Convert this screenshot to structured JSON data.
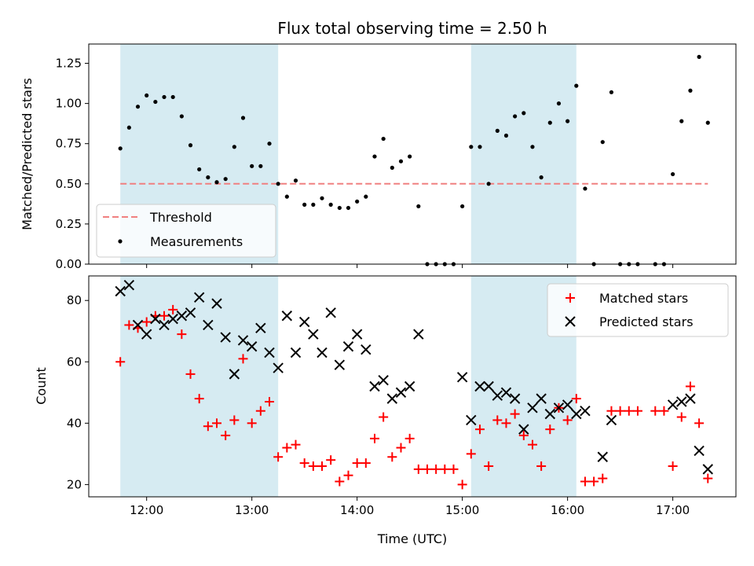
{
  "chart_data": [
    {
      "type": "scatter",
      "title": "Flux total observing time = 2.50 h",
      "ylabel": "Matched/Predicted stars",
      "xlim": [
        "11:27",
        "17:36"
      ],
      "ylim": [
        0,
        1.37
      ],
      "yticks": [
        "0.00",
        "0.25",
        "0.50",
        "0.75",
        "1.00",
        "1.25"
      ],
      "shaded_intervals": [
        [
          "11:45",
          "13:15"
        ],
        [
          "15:05",
          "16:05"
        ]
      ],
      "threshold": {
        "name": "Threshold",
        "value": 0.5,
        "x_range": [
          "11:45",
          "17:20"
        ],
        "color": "#f08080",
        "style": "dashed"
      },
      "series": [
        {
          "name": "Measurements",
          "marker": "dot",
          "color": "#000000",
          "points": [
            [
              "11:45",
              0.72
            ],
            [
              "11:50",
              0.85
            ],
            [
              "11:55",
              0.98
            ],
            [
              "12:00",
              1.05
            ],
            [
              "12:05",
              1.01
            ],
            [
              "12:10",
              1.04
            ],
            [
              "12:15",
              1.04
            ],
            [
              "12:20",
              0.92
            ],
            [
              "12:25",
              0.74
            ],
            [
              "12:30",
              0.59
            ],
            [
              "12:35",
              0.54
            ],
            [
              "12:40",
              0.51
            ],
            [
              "12:45",
              0.53
            ],
            [
              "12:50",
              0.73
            ],
            [
              "12:55",
              0.91
            ],
            [
              "13:00",
              0.61
            ],
            [
              "13:05",
              0.61
            ],
            [
              "13:10",
              0.75
            ],
            [
              "13:15",
              0.5
            ],
            [
              "13:20",
              0.42
            ],
            [
              "13:25",
              0.52
            ],
            [
              "13:30",
              0.37
            ],
            [
              "13:35",
              0.37
            ],
            [
              "13:40",
              0.41
            ],
            [
              "13:45",
              0.37
            ],
            [
              "13:50",
              0.35
            ],
            [
              "13:55",
              0.35
            ],
            [
              "14:00",
              0.39
            ],
            [
              "14:05",
              0.42
            ],
            [
              "14:10",
              0.67
            ],
            [
              "14:15",
              0.78
            ],
            [
              "14:20",
              0.6
            ],
            [
              "14:25",
              0.64
            ],
            [
              "14:30",
              0.67
            ],
            [
              "14:35",
              0.36
            ],
            [
              "14:40",
              0.0
            ],
            [
              "14:45",
              0.0
            ],
            [
              "14:50",
              0.0
            ],
            [
              "14:55",
              0.0
            ],
            [
              "15:00",
              0.36
            ],
            [
              "15:05",
              0.73
            ],
            [
              "15:10",
              0.73
            ],
            [
              "15:15",
              0.5
            ],
            [
              "15:20",
              0.83
            ],
            [
              "15:25",
              0.8
            ],
            [
              "15:30",
              0.92
            ],
            [
              "15:35",
              0.94
            ],
            [
              "15:40",
              0.73
            ],
            [
              "15:45",
              0.54
            ],
            [
              "15:50",
              0.88
            ],
            [
              "15:55",
              1.0
            ],
            [
              "16:00",
              0.89
            ],
            [
              "16:05",
              1.11
            ],
            [
              "16:10",
              0.47
            ],
            [
              "16:15",
              0.0
            ],
            [
              "16:20",
              0.76
            ],
            [
              "16:25",
              1.07
            ],
            [
              "16:30",
              0.0
            ],
            [
              "16:35",
              0.0
            ],
            [
              "16:40",
              0.0
            ],
            [
              "16:50",
              0.0
            ],
            [
              "16:55",
              0.0
            ],
            [
              "17:00",
              0.56
            ],
            [
              "17:05",
              0.89
            ],
            [
              "17:10",
              1.08
            ],
            [
              "17:15",
              1.29
            ],
            [
              "17:20",
              0.88
            ]
          ]
        }
      ],
      "legend": {
        "position": "lower-left",
        "entries": [
          "Threshold",
          "Measurements"
        ]
      }
    },
    {
      "type": "scatter",
      "title": "",
      "xlabel": "Time (UTC)",
      "ylabel": "Count",
      "xlim": [
        "11:27",
        "17:36"
      ],
      "ylim": [
        16,
        88
      ],
      "xticks": [
        "12:00",
        "13:00",
        "14:00",
        "15:00",
        "16:00",
        "17:00"
      ],
      "yticks": [
        20,
        40,
        60,
        80
      ],
      "shaded_intervals": [
        [
          "11:45",
          "13:15"
        ],
        [
          "15:05",
          "16:05"
        ]
      ],
      "series": [
        {
          "name": "Matched stars",
          "marker": "plus",
          "color": "#ff0000",
          "points": [
            [
              "11:45",
              60
            ],
            [
              "11:50",
              72
            ],
            [
              "11:55",
              71
            ],
            [
              "12:00",
              73
            ],
            [
              "12:05",
              75
            ],
            [
              "12:10",
              75
            ],
            [
              "12:15",
              77
            ],
            [
              "12:20",
              69
            ],
            [
              "12:25",
              56
            ],
            [
              "12:30",
              48
            ],
            [
              "12:35",
              39
            ],
            [
              "12:40",
              40
            ],
            [
              "12:45",
              36
            ],
            [
              "12:50",
              41
            ],
            [
              "12:55",
              61
            ],
            [
              "13:00",
              40
            ],
            [
              "13:05",
              44
            ],
            [
              "13:10",
              47
            ],
            [
              "13:15",
              29
            ],
            [
              "13:20",
              32
            ],
            [
              "13:25",
              33
            ],
            [
              "13:30",
              27
            ],
            [
              "13:35",
              26
            ],
            [
              "13:40",
              26
            ],
            [
              "13:45",
              28
            ],
            [
              "13:50",
              21
            ],
            [
              "13:55",
              23
            ],
            [
              "14:00",
              27
            ],
            [
              "14:05",
              27
            ],
            [
              "14:10",
              35
            ],
            [
              "14:15",
              42
            ],
            [
              "14:20",
              29
            ],
            [
              "14:25",
              32
            ],
            [
              "14:30",
              35
            ],
            [
              "14:35",
              25
            ],
            [
              "14:40",
              25
            ],
            [
              "14:45",
              25
            ],
            [
              "14:50",
              25
            ],
            [
              "14:55",
              25
            ],
            [
              "15:00",
              20
            ],
            [
              "15:05",
              30
            ],
            [
              "15:10",
              38
            ],
            [
              "15:15",
              26
            ],
            [
              "15:20",
              41
            ],
            [
              "15:25",
              40
            ],
            [
              "15:30",
              43
            ],
            [
              "15:35",
              36
            ],
            [
              "15:40",
              33
            ],
            [
              "15:45",
              26
            ],
            [
              "15:50",
              38
            ],
            [
              "15:55",
              45
            ],
            [
              "16:00",
              41
            ],
            [
              "16:05",
              48
            ],
            [
              "16:10",
              21
            ],
            [
              "16:15",
              21
            ],
            [
              "16:20",
              22
            ],
            [
              "16:25",
              44
            ],
            [
              "16:30",
              44
            ],
            [
              "16:35",
              44
            ],
            [
              "16:40",
              44
            ],
            [
              "16:50",
              44
            ],
            [
              "16:55",
              44
            ],
            [
              "17:00",
              26
            ],
            [
              "17:05",
              42
            ],
            [
              "17:10",
              52
            ],
            [
              "17:15",
              40
            ],
            [
              "17:20",
              22
            ]
          ]
        },
        {
          "name": "Predicted stars",
          "marker": "x",
          "color": "#000000",
          "points": [
            [
              "11:45",
              83
            ],
            [
              "11:50",
              85
            ],
            [
              "11:55",
              72
            ],
            [
              "12:00",
              69
            ],
            [
              "12:05",
              74
            ],
            [
              "12:10",
              72
            ],
            [
              "12:15",
              74
            ],
            [
              "12:20",
              75
            ],
            [
              "12:25",
              76
            ],
            [
              "12:30",
              81
            ],
            [
              "12:35",
              72
            ],
            [
              "12:40",
              79
            ],
            [
              "12:45",
              68
            ],
            [
              "12:50",
              56
            ],
            [
              "12:55",
              67
            ],
            [
              "13:00",
              65
            ],
            [
              "13:05",
              71
            ],
            [
              "13:10",
              63
            ],
            [
              "13:15",
              58
            ],
            [
              "13:20",
              75
            ],
            [
              "13:25",
              63
            ],
            [
              "13:30",
              73
            ],
            [
              "13:35",
              69
            ],
            [
              "13:40",
              63
            ],
            [
              "13:45",
              76
            ],
            [
              "13:50",
              59
            ],
            [
              "13:55",
              65
            ],
            [
              "14:00",
              69
            ],
            [
              "14:05",
              64
            ],
            [
              "14:10",
              52
            ],
            [
              "14:15",
              54
            ],
            [
              "14:20",
              48
            ],
            [
              "14:25",
              50
            ],
            [
              "14:30",
              52
            ],
            [
              "14:35",
              69
            ],
            [
              "15:00",
              55
            ],
            [
              "15:05",
              41
            ],
            [
              "15:10",
              52
            ],
            [
              "15:15",
              52
            ],
            [
              "15:20",
              49
            ],
            [
              "15:25",
              50
            ],
            [
              "15:30",
              48
            ],
            [
              "15:35",
              38
            ],
            [
              "15:40",
              45
            ],
            [
              "15:45",
              48
            ],
            [
              "15:50",
              43
            ],
            [
              "15:55",
              45
            ],
            [
              "16:00",
              46
            ],
            [
              "16:05",
              43
            ],
            [
              "16:10",
              44
            ],
            [
              "16:20",
              29
            ],
            [
              "16:25",
              41
            ],
            [
              "17:00",
              46
            ],
            [
              "17:05",
              47
            ],
            [
              "17:10",
              48
            ],
            [
              "17:15",
              31
            ],
            [
              "17:20",
              25
            ]
          ]
        }
      ],
      "legend": {
        "position": "upper-right",
        "entries": [
          "Matched stars",
          "Predicted stars"
        ]
      }
    }
  ],
  "colors": {
    "shading": "#add8e6",
    "threshold": "#f08080",
    "matched": "#ff0000",
    "predicted": "#000000",
    "measurements": "#000000"
  }
}
